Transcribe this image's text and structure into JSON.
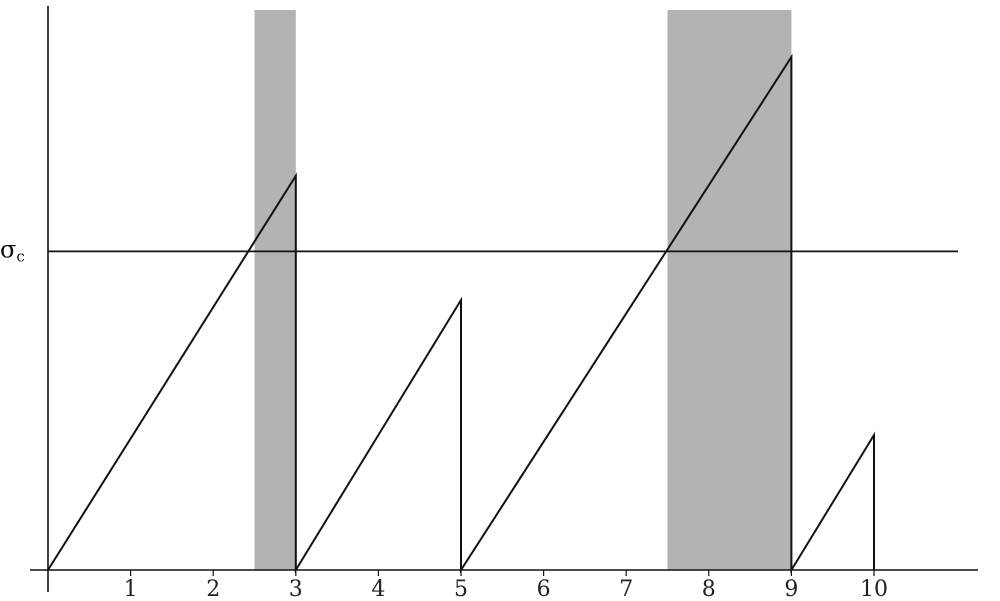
{
  "chart_data": {
    "type": "line",
    "title": "",
    "xlabel": "",
    "ylabel": "",
    "xlim": [
      -0.05,
      11.0
    ],
    "ylim": [
      0,
      1.0
    ],
    "x_ticks": [
      "1",
      "2",
      "3",
      "4",
      "5",
      "6",
      "7",
      "8",
      "9",
      "10"
    ],
    "threshold": {
      "label": "σ",
      "subscript": "c",
      "value": 0.59
    },
    "shaded_intervals": [
      {
        "x0": 2.5,
        "x1": 3.0
      },
      {
        "x0": 7.5,
        "x1": 9.0
      }
    ],
    "series": [
      {
        "points": [
          [
            0,
            0
          ],
          [
            3,
            0.73
          ],
          [
            3,
            0
          ],
          [
            5,
            0.5
          ],
          [
            5,
            0
          ],
          [
            9,
            0.95
          ],
          [
            9,
            0
          ],
          [
            10,
            0.25
          ],
          [
            10,
            0
          ]
        ]
      }
    ],
    "colors": {
      "line": "#111111",
      "shade": "#b3b3b3",
      "axis": "#111111"
    }
  }
}
